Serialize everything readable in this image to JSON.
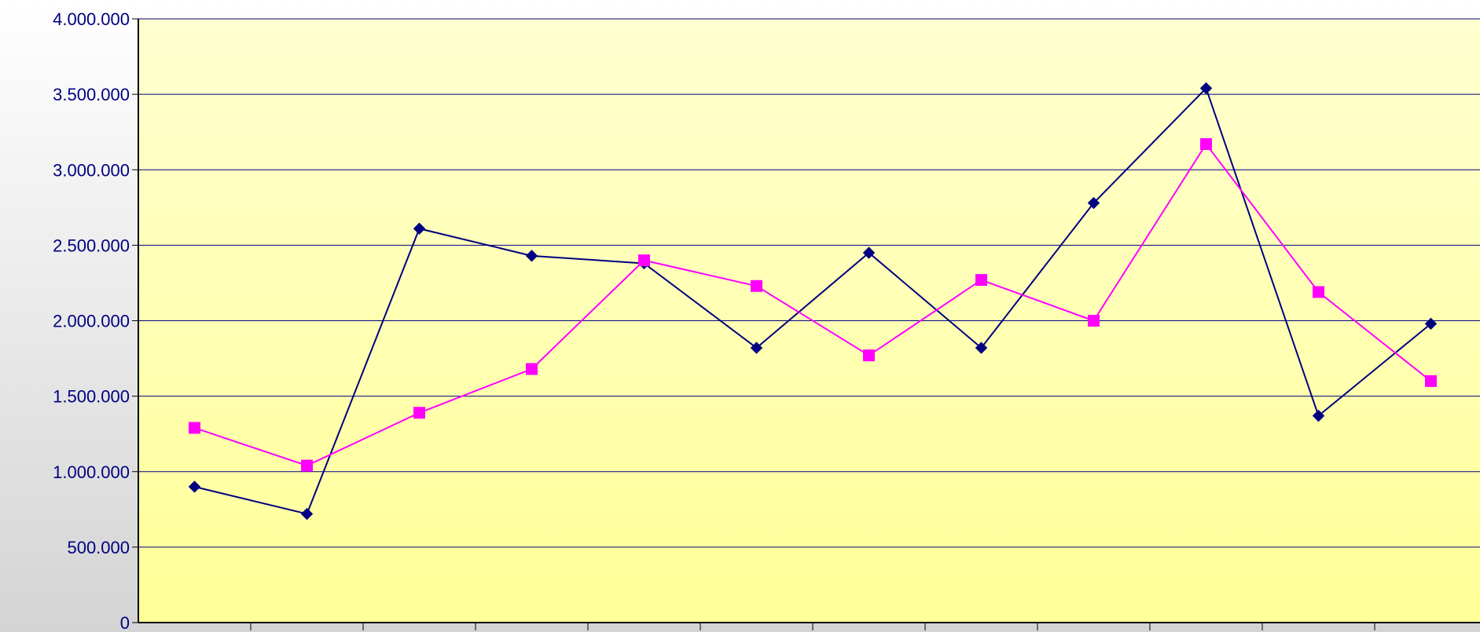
{
  "chart_data": {
    "type": "line",
    "title": "",
    "xlabel": "",
    "ylabel": "",
    "ylim": [
      0,
      4000000
    ],
    "yticks": [
      0,
      500000,
      1000000,
      1500000,
      2000000,
      2500000,
      3000000,
      3500000,
      4000000
    ],
    "ytick_labels": [
      "0",
      "500.000",
      "1.000.000",
      "1.500.000",
      "2.000.000",
      "2.500.000",
      "3.000.000",
      "3.500.000",
      "4.000.000"
    ],
    "grid": "horizontal",
    "legend": "none",
    "plot_background": "#ffffc0",
    "axis_color": "#000080",
    "series": [
      {
        "color": "#000080",
        "marker": "diamond",
        "values": [
          900000,
          720000,
          2610000,
          2430000,
          2380000,
          1820000,
          2450000,
          1820000,
          2780000,
          3540000,
          1370000,
          1980000
        ]
      },
      {
        "color": "#ff00ff",
        "marker": "square",
        "values": [
          1290000,
          1040000,
          1390000,
          1680000,
          2400000,
          2230000,
          1770000,
          2270000,
          2000000,
          3170000,
          2190000,
          1600000
        ]
      }
    ]
  }
}
